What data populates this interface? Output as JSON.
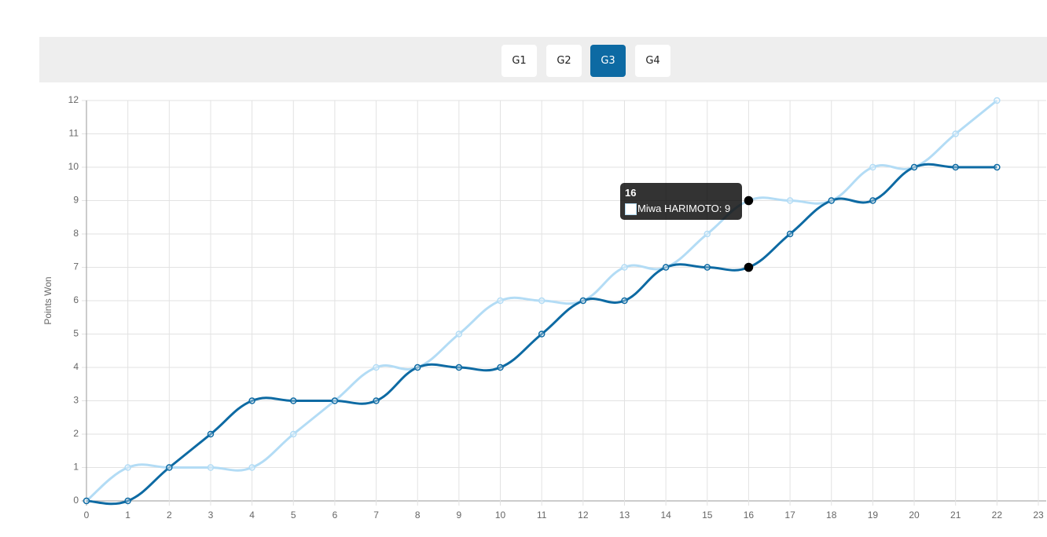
{
  "nav": {
    "tabs": [
      {
        "label": "G1",
        "active": false
      },
      {
        "label": "G2",
        "active": false
      },
      {
        "label": "G3",
        "active": true
      },
      {
        "label": "G4",
        "active": false
      }
    ]
  },
  "chart_data": {
    "type": "line",
    "y_label": "Points Won",
    "x": [
      0,
      1,
      2,
      3,
      4,
      5,
      6,
      7,
      8,
      9,
      10,
      11,
      12,
      13,
      14,
      15,
      16,
      17,
      18,
      19,
      20,
      21,
      22
    ],
    "series": [
      {
        "name": "Miwa HARIMOTO",
        "color": "#b3dcf5",
        "values": [
          0,
          1,
          1,
          1,
          1,
          2,
          3,
          4,
          4,
          5,
          6,
          6,
          6,
          7,
          7,
          8,
          9,
          9,
          9,
          10,
          10,
          11,
          12
        ]
      },
      {
        "color": "#0d6aa3",
        "values": [
          0,
          0,
          1,
          2,
          3,
          3,
          3,
          3,
          4,
          4,
          4,
          5,
          6,
          6,
          7,
          7,
          7,
          8,
          9,
          9,
          10,
          10,
          10
        ]
      }
    ],
    "xlim": [
      0,
      23
    ],
    "xticks": [
      0,
      1,
      2,
      3,
      4,
      5,
      6,
      7,
      8,
      9,
      10,
      11,
      12,
      13,
      14,
      15,
      16,
      17,
      18,
      19,
      20,
      21,
      22,
      23
    ],
    "ylim": [
      0,
      12
    ],
    "yticks": [
      0,
      1,
      2,
      3,
      4,
      5,
      6,
      7,
      8,
      9,
      10,
      11,
      12
    ],
    "grid": true,
    "tooltip": {
      "title": "16",
      "label": "Miwa HARIMOTO: 9"
    }
  }
}
